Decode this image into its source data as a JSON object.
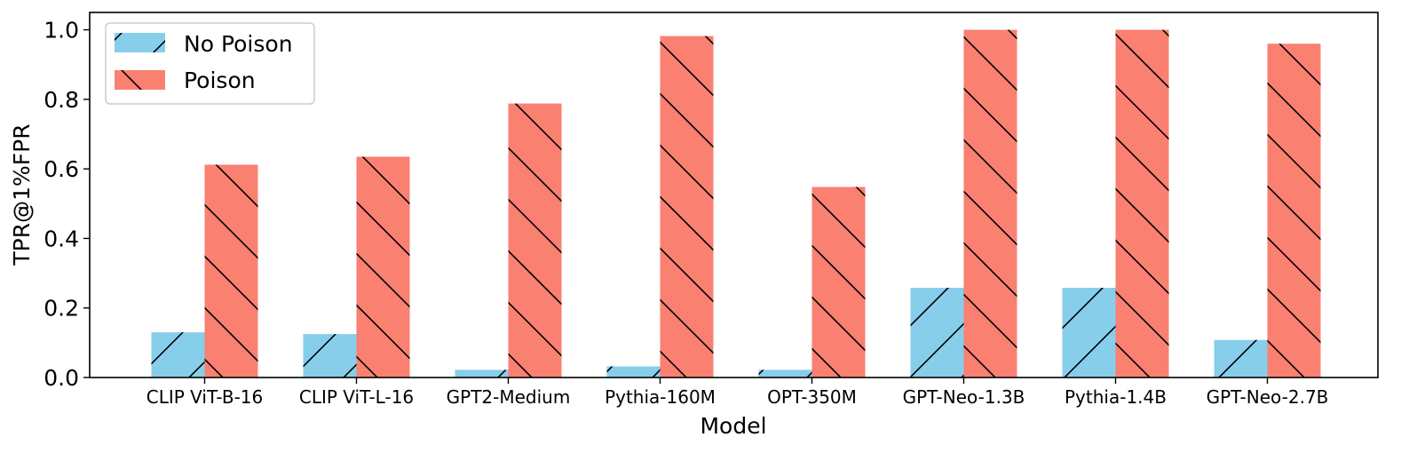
{
  "chart_data": {
    "type": "bar",
    "title": "",
    "xlabel": "Model",
    "ylabel": "TPR@1%FPR",
    "ylim": [
      0,
      1.05
    ],
    "yticks": [
      "0.0",
      "0.2",
      "0.4",
      "0.6",
      "0.8",
      "1.0"
    ],
    "categories": [
      "CLIP ViT-B-16",
      "CLIP ViT-L-16",
      "GPT2-Medium",
      "Pythia-160M",
      "OPT-350M",
      "GPT-Neo-1.3B",
      "Pythia-1.4B",
      "GPT-Neo-2.7B"
    ],
    "series": [
      {
        "name": "No Poison",
        "values": [
          0.13,
          0.125,
          0.022,
          0.032,
          0.022,
          0.258,
          0.258,
          0.108
        ],
        "color": "#87ceeb",
        "hatch": "forward-slash"
      },
      {
        "name": "Poison",
        "values": [
          0.612,
          0.635,
          0.788,
          0.982,
          0.548,
          1.0,
          1.0,
          0.96
        ],
        "color": "#fa8072",
        "hatch": "back-slash"
      }
    ],
    "legend_position": "top-left",
    "grid": false
  }
}
